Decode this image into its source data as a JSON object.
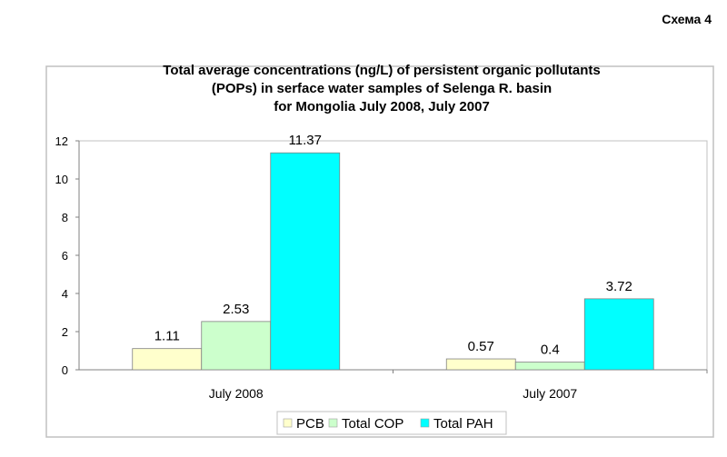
{
  "page_label": "Схема 4",
  "chart_data": {
    "type": "bar",
    "title_lines": [
      "Total average concentrations (ng/L) of persistent organic pollutants",
      "(POPs) in serface water samples of Selenga R. basin",
      "for Mongolia July 2008, July 2007"
    ],
    "categories": [
      "July 2008",
      "July 2007"
    ],
    "series": [
      {
        "name": "PCB",
        "values": [
          1.11,
          0.57
        ],
        "labels": [
          "1.11",
          "0.57"
        ],
        "color": "#FFFFCC"
      },
      {
        "name": "Total COP",
        "values": [
          2.53,
          0.4
        ],
        "labels": [
          "2.53",
          "0.4"
        ],
        "color": "#CCFFCC"
      },
      {
        "name": "Total PAH",
        "values": [
          11.37,
          3.72
        ],
        "labels": [
          "11.37",
          "3.72"
        ],
        "color": "#00FFFF"
      }
    ],
    "ylim": [
      0,
      12
    ],
    "yticks": [
      "0",
      "2",
      "4",
      "6",
      "8",
      "10",
      "12"
    ],
    "grid": false,
    "legend": "bottom"
  }
}
